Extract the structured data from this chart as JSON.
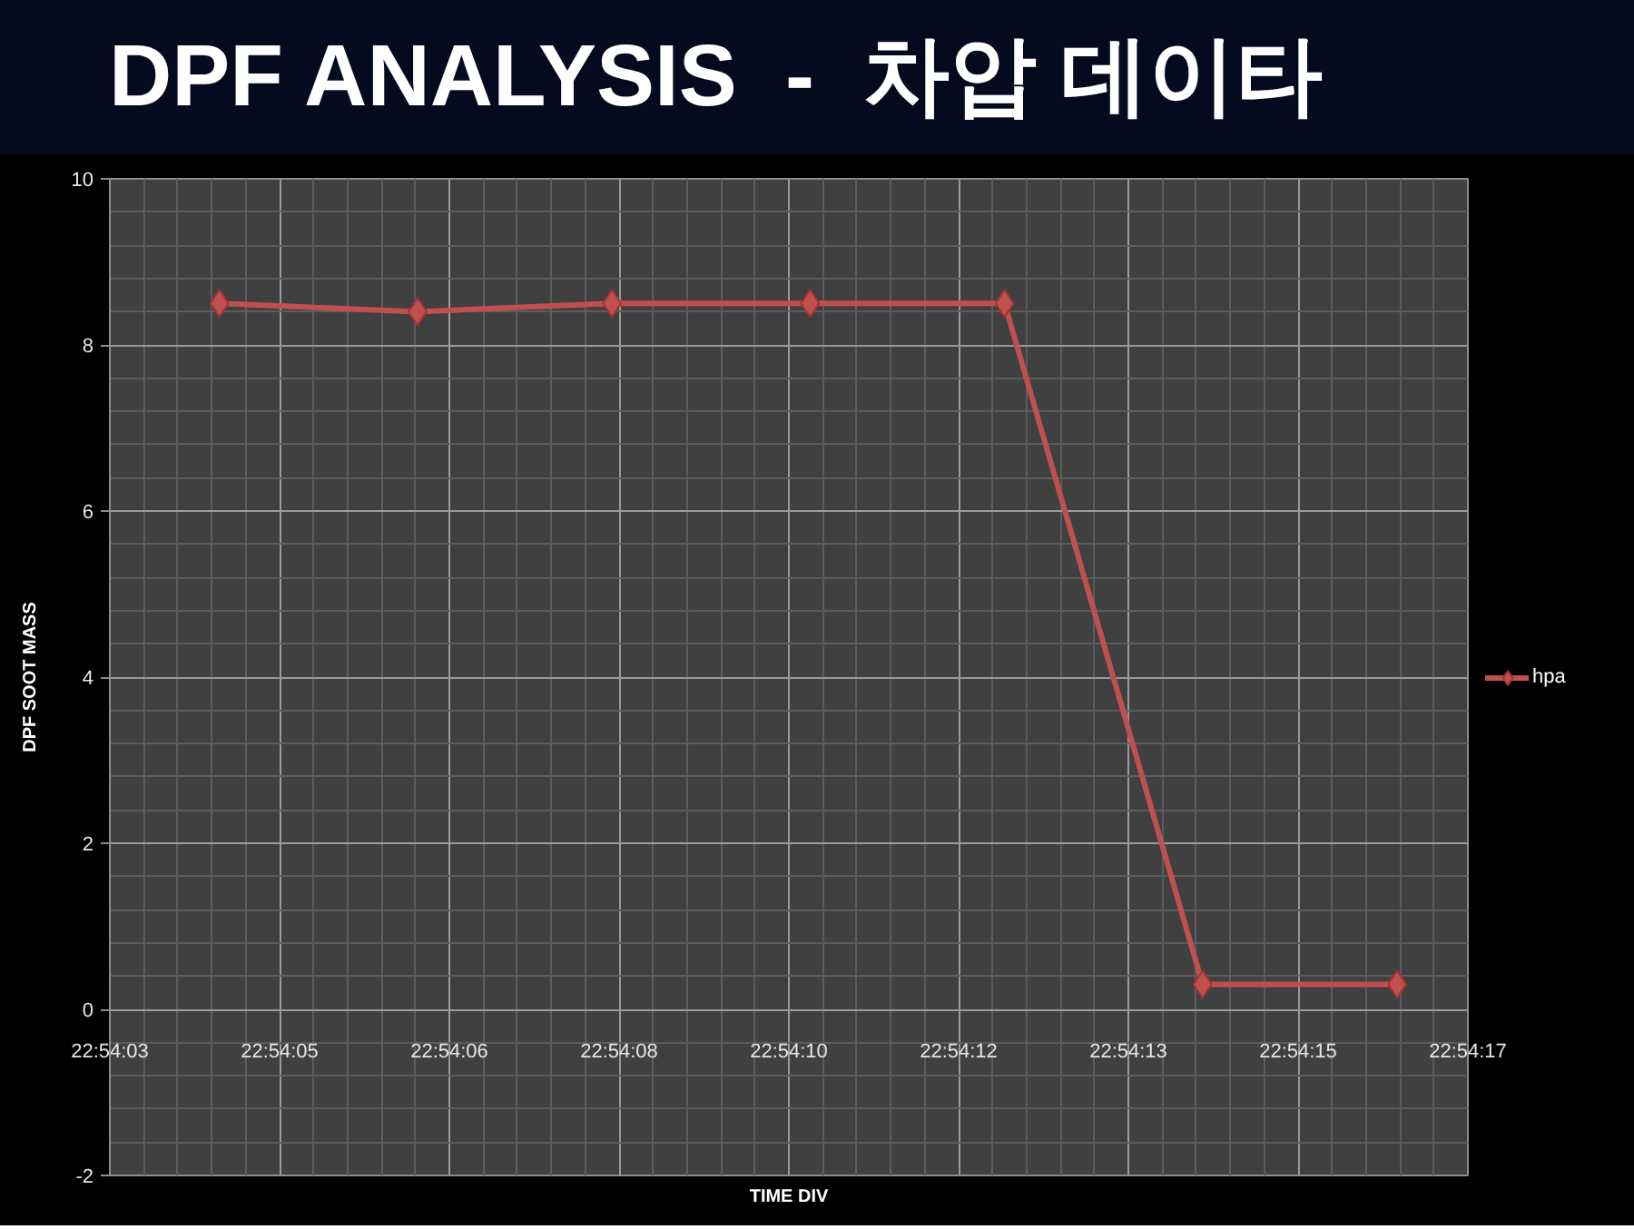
{
  "chart_data": {
    "type": "line",
    "title": "DPF ANALYSIS  -  차압 데이타",
    "xlabel": "TIME DIV",
    "ylabel": "DPF SOOT MASS",
    "x": [
      22.90111,
      22.90167,
      22.90222,
      22.90278,
      22.90333,
      22.90389,
      22.90444
    ],
    "series": [
      {
        "name": "hpa",
        "color": "#c0504d",
        "values": [
          8.5,
          8.4,
          8.5,
          8.5,
          8.5,
          0.3,
          0.3
        ]
      }
    ],
    "xlim": [
      22.9008,
      22.90464
    ],
    "xticks": [
      {
        "value": 22.9008,
        "label": "22:54:03"
      },
      {
        "value": 22.90128,
        "label": "22:54:05"
      },
      {
        "value": 22.90176,
        "label": "22:54:06"
      },
      {
        "value": 22.90224,
        "label": "22:54:08"
      },
      {
        "value": 22.90272,
        "label": "22:54:10"
      },
      {
        "value": 22.9032,
        "label": "22:54:12"
      },
      {
        "value": 22.90368,
        "label": "22:54:13"
      },
      {
        "value": 22.90416,
        "label": "22:54:15"
      },
      {
        "value": 22.90464,
        "label": "22:54:17"
      }
    ],
    "ylim": [
      -2,
      10
    ],
    "yticks": [
      -2,
      0,
      2,
      4,
      6,
      8,
      10
    ],
    "grid": true,
    "legend": "right",
    "marker": "diamond",
    "line_style": "solid"
  }
}
